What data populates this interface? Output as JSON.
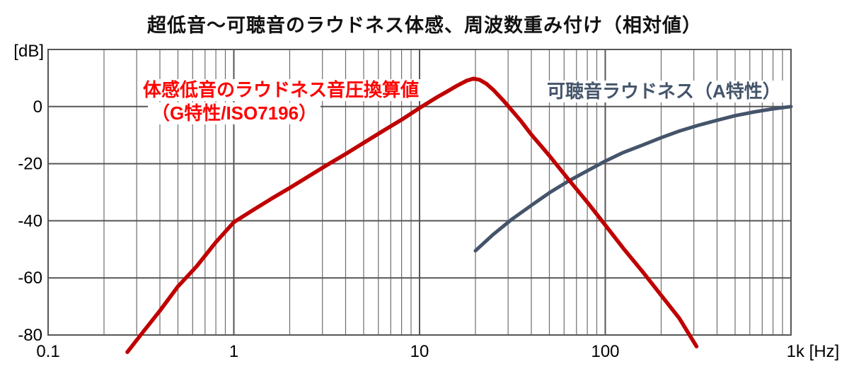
{
  "chart_data": {
    "type": "line",
    "title": "超低音～可聴音のラウドネス体感、周波数重み付け（相対値）",
    "x_axis": {
      "scale": "log",
      "min": 0.1,
      "max": 1000,
      "unit": "Hz",
      "grid": "log-decades-with-minor-lines",
      "ticks": [
        {
          "f": 0.1,
          "label": "0.1"
        },
        {
          "f": 1,
          "label": "1"
        },
        {
          "f": 10,
          "label": "10"
        },
        {
          "f": 100,
          "label": "100"
        },
        {
          "f": 1000,
          "label": "1k [Hz]",
          "dx": 31
        }
      ]
    },
    "y_axis": {
      "min": -80,
      "max": 20,
      "step": 20,
      "unit_label": "[dB]",
      "ticks": [
        {
          "v": 0,
          "label": "0"
        },
        {
          "v": -20,
          "label": "-20"
        },
        {
          "v": -40,
          "label": "-40"
        },
        {
          "v": -60,
          "label": "-60"
        },
        {
          "v": -80,
          "label": "-80"
        }
      ]
    },
    "grid_color_major": "#565656",
    "grid_color_minor": "#6e6e6e",
    "legend_position": "inside-plot-text-labels",
    "series": [
      {
        "id": "g-weighting",
        "name": "体感低音のラウドネス音圧換算値（G特性/ISO7196）",
        "label_lines": [
          "体感低音のラウドネス音圧換算値",
          "（G特性/ISO7196）"
        ],
        "color": "#c00000",
        "label_color": "#ff0000",
        "points": [
          [
            0.267,
            -86
          ],
          [
            0.315,
            -80
          ],
          [
            0.4,
            -71.5
          ],
          [
            0.5,
            -63
          ],
          [
            0.63,
            -56
          ],
          [
            0.8,
            -47.5
          ],
          [
            1.0,
            -40.5
          ],
          [
            1.25,
            -36.5
          ],
          [
            1.6,
            -32.2
          ],
          [
            2.0,
            -28.5
          ],
          [
            2.5,
            -24.6
          ],
          [
            3.15,
            -20.6
          ],
          [
            4.0,
            -16.6
          ],
          [
            5.0,
            -12.7
          ],
          [
            6.3,
            -8.7
          ],
          [
            8.0,
            -4.6
          ],
          [
            10.0,
            -0.5
          ],
          [
            12.5,
            3.4
          ],
          [
            14.0,
            5.2
          ],
          [
            16.0,
            7.4
          ],
          [
            18.0,
            9.1
          ],
          [
            19.5,
            9.8
          ],
          [
            21.0,
            9.4
          ],
          [
            23.0,
            7.9
          ],
          [
            25.0,
            5.8
          ],
          [
            28.0,
            2.4
          ],
          [
            30.0,
            0.2
          ],
          [
            35.0,
            -4.9
          ],
          [
            40.0,
            -9.8
          ],
          [
            50.0,
            -17.2
          ],
          [
            63.0,
            -25.3
          ],
          [
            80.0,
            -33.5
          ],
          [
            100.0,
            -41.5
          ],
          [
            125.0,
            -49.6
          ],
          [
            160.0,
            -58.1
          ],
          [
            200.0,
            -66.1
          ],
          [
            250.0,
            -74.1
          ],
          [
            310.0,
            -84.0
          ]
        ]
      },
      {
        "id": "a-weighting",
        "name": "可聴音ラウドネス（A特性）",
        "label_lines": [
          "可聴音ラウドネス（A特性）"
        ],
        "color": "#44546a",
        "label_color": "#44546a",
        "points": [
          [
            20,
            -50.5
          ],
          [
            25,
            -44.7
          ],
          [
            31.5,
            -39.4
          ],
          [
            40,
            -34.6
          ],
          [
            50,
            -30.2
          ],
          [
            63,
            -26.2
          ],
          [
            80,
            -22.5
          ],
          [
            100,
            -19.1
          ],
          [
            125,
            -16.1
          ],
          [
            160,
            -13.4
          ],
          [
            200,
            -10.9
          ],
          [
            250,
            -8.6
          ],
          [
            315,
            -6.6
          ],
          [
            400,
            -4.8
          ],
          [
            500,
            -3.2
          ],
          [
            630,
            -1.9
          ],
          [
            800,
            -0.8
          ],
          [
            1000,
            0
          ]
        ]
      }
    ]
  }
}
